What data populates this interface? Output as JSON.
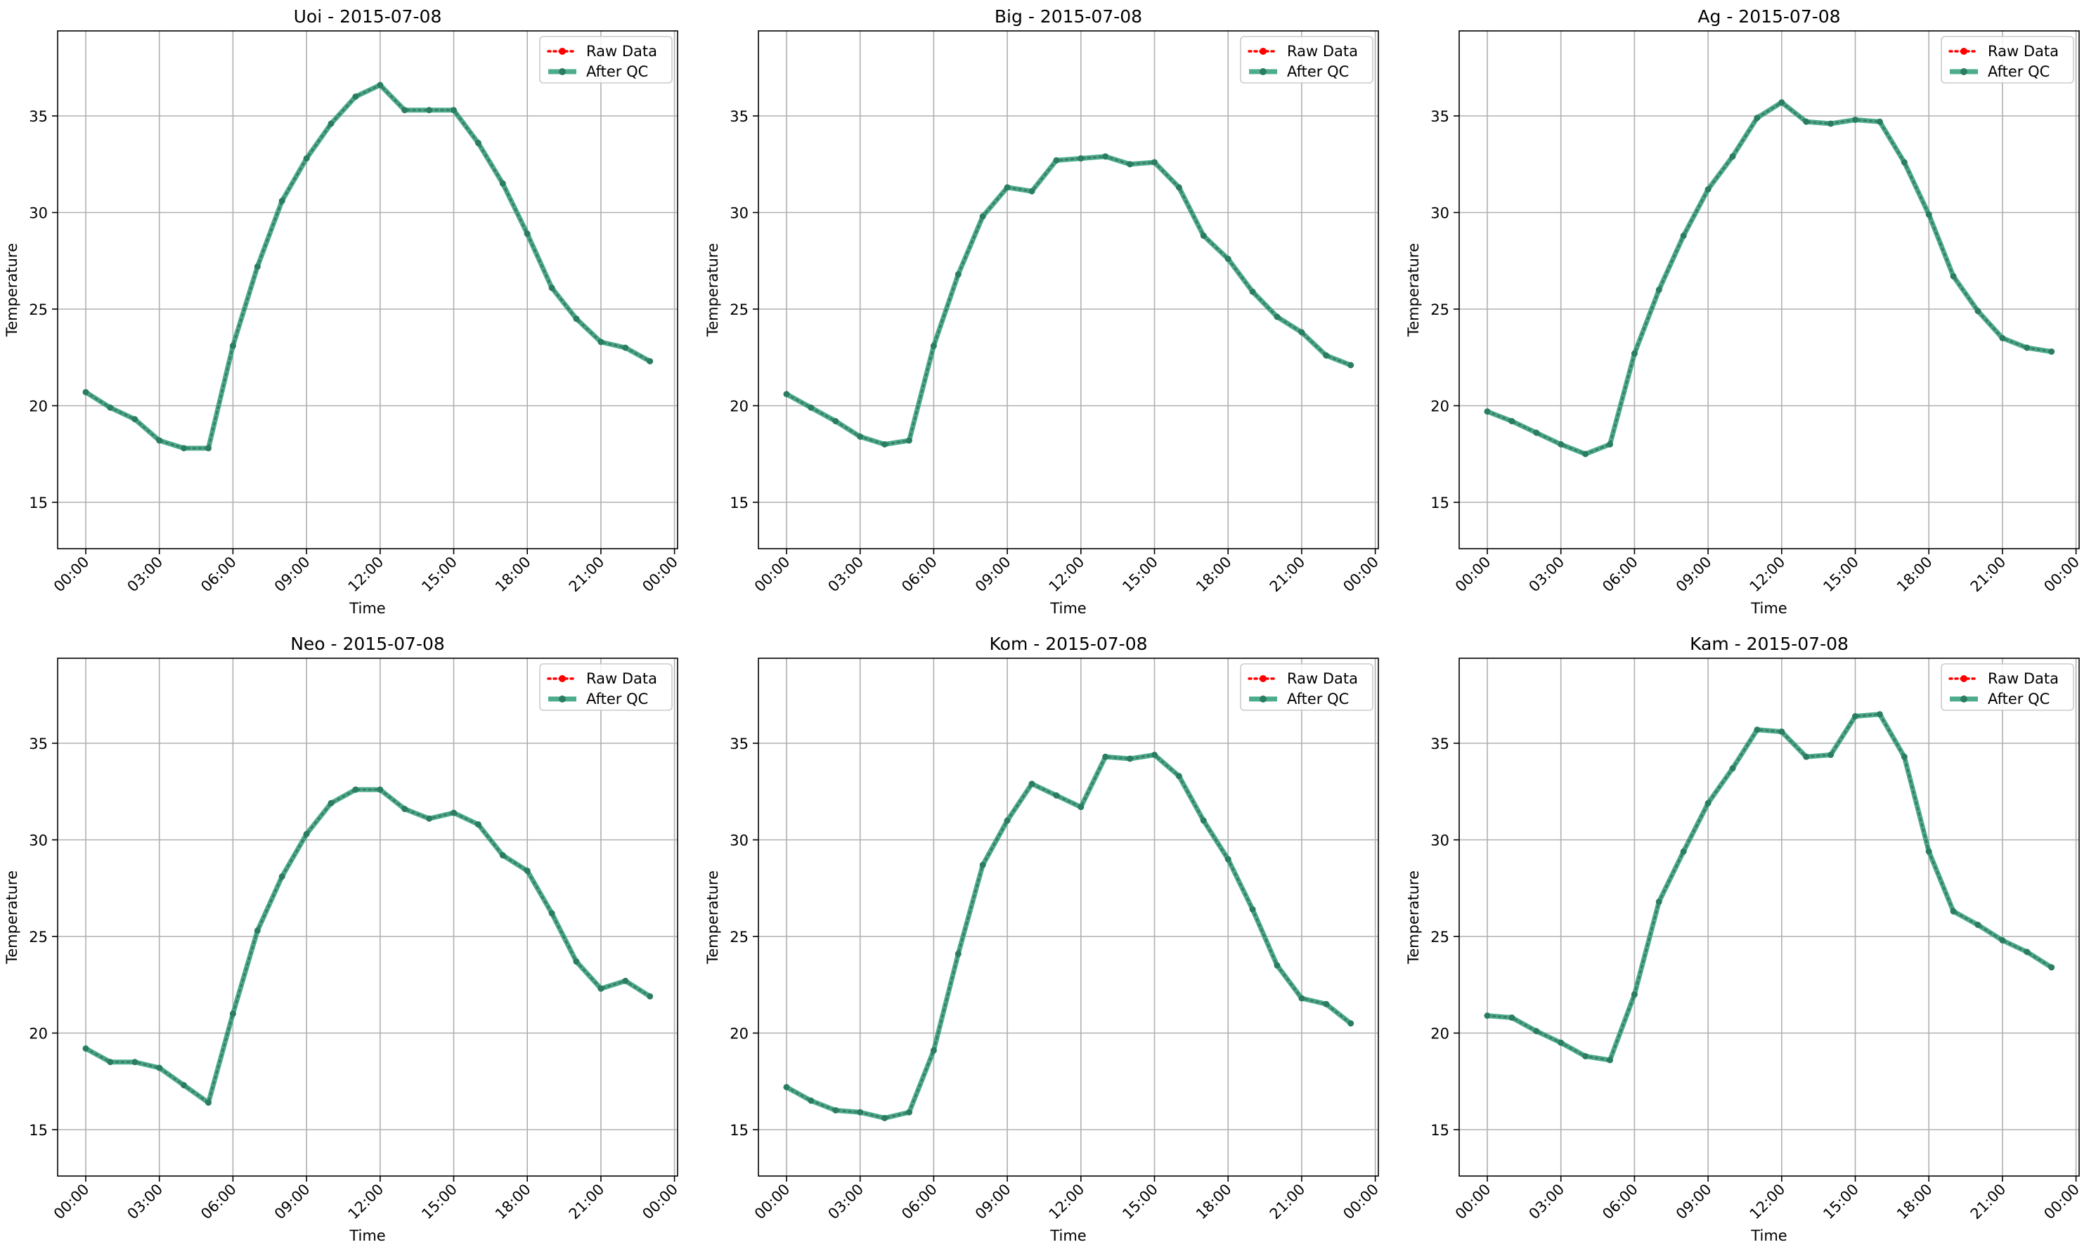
{
  "chart_data": [
    {
      "type": "line",
      "title": "Uoi - 2015-07-08",
      "xlabel": "Time",
      "ylabel": "Temperature",
      "x": [
        "00:00",
        "01:00",
        "02:00",
        "03:00",
        "04:00",
        "05:00",
        "06:00",
        "07:00",
        "08:00",
        "09:00",
        "10:00",
        "11:00",
        "12:00",
        "13:00",
        "14:00",
        "15:00",
        "16:00",
        "17:00",
        "18:00",
        "19:00",
        "20:00",
        "21:00",
        "22:00",
        "23:00"
      ],
      "ylim": [
        12.6,
        39.4
      ],
      "yticks": [
        15,
        20,
        25,
        30,
        35
      ],
      "xtick_labels": [
        "00:00",
        "03:00",
        "06:00",
        "09:00",
        "12:00",
        "15:00",
        "18:00",
        "21:00",
        "00:00"
      ],
      "grid": true,
      "legend_position": "top-right",
      "series": [
        {
          "name": "Raw Data",
          "color": "#ff0000",
          "values": [
            20.7,
            19.9,
            19.3,
            18.2,
            17.8,
            17.8,
            23.1,
            27.2,
            30.6,
            32.8,
            34.6,
            36.0,
            36.6,
            35.3,
            35.3,
            35.3,
            33.6,
            31.5,
            28.9,
            26.1,
            24.5,
            23.3,
            23.0,
            22.3
          ]
        },
        {
          "name": "After QC",
          "color": "#2e9e78",
          "values": [
            20.7,
            19.9,
            19.3,
            18.2,
            17.8,
            17.8,
            23.1,
            27.2,
            30.6,
            32.8,
            34.6,
            36.0,
            36.6,
            35.3,
            35.3,
            35.3,
            33.6,
            31.5,
            28.9,
            26.1,
            24.5,
            23.3,
            23.0,
            22.3
          ]
        }
      ]
    },
    {
      "type": "line",
      "title": "Big - 2015-07-08",
      "xlabel": "Time",
      "ylabel": "Temperature",
      "x": [
        "00:00",
        "01:00",
        "02:00",
        "03:00",
        "04:00",
        "05:00",
        "06:00",
        "07:00",
        "08:00",
        "09:00",
        "10:00",
        "11:00",
        "12:00",
        "13:00",
        "14:00",
        "15:00",
        "16:00",
        "17:00",
        "18:00",
        "19:00",
        "20:00",
        "21:00",
        "22:00",
        "23:00"
      ],
      "ylim": [
        12.6,
        39.4
      ],
      "yticks": [
        15,
        20,
        25,
        30,
        35
      ],
      "xtick_labels": [
        "00:00",
        "03:00",
        "06:00",
        "09:00",
        "12:00",
        "15:00",
        "18:00",
        "21:00",
        "00:00"
      ],
      "grid": true,
      "legend_position": "top-right",
      "series": [
        {
          "name": "Raw Data",
          "color": "#ff0000",
          "values": [
            20.6,
            19.9,
            19.2,
            18.4,
            18.0,
            18.2,
            23.1,
            26.8,
            29.8,
            31.3,
            31.1,
            32.7,
            32.8,
            32.9,
            32.5,
            32.6,
            31.3,
            28.8,
            27.6,
            25.9,
            24.6,
            23.8,
            22.6,
            22.1
          ]
        },
        {
          "name": "After QC",
          "color": "#2e9e78",
          "values": [
            20.6,
            19.9,
            19.2,
            18.4,
            18.0,
            18.2,
            23.1,
            26.8,
            29.8,
            31.3,
            31.1,
            32.7,
            32.8,
            32.9,
            32.5,
            32.6,
            31.3,
            28.8,
            27.6,
            25.9,
            24.6,
            23.8,
            22.6,
            22.1
          ]
        }
      ]
    },
    {
      "type": "line",
      "title": "Ag - 2015-07-08",
      "xlabel": "Time",
      "ylabel": "Temperature",
      "x": [
        "00:00",
        "01:00",
        "02:00",
        "03:00",
        "04:00",
        "05:00",
        "06:00",
        "07:00",
        "08:00",
        "09:00",
        "10:00",
        "11:00",
        "12:00",
        "13:00",
        "14:00",
        "15:00",
        "16:00",
        "17:00",
        "18:00",
        "19:00",
        "20:00",
        "21:00",
        "22:00",
        "23:00"
      ],
      "ylim": [
        12.6,
        39.4
      ],
      "yticks": [
        15,
        20,
        25,
        30,
        35
      ],
      "xtick_labels": [
        "00:00",
        "03:00",
        "06:00",
        "09:00",
        "12:00",
        "15:00",
        "18:00",
        "21:00",
        "00:00"
      ],
      "grid": true,
      "legend_position": "top-right",
      "series": [
        {
          "name": "Raw Data",
          "color": "#ff0000",
          "values": [
            19.7,
            19.2,
            18.6,
            18.0,
            17.5,
            18.0,
            22.7,
            26.0,
            28.8,
            31.2,
            32.9,
            34.9,
            35.7,
            34.7,
            34.6,
            34.8,
            34.7,
            32.6,
            29.9,
            26.7,
            24.9,
            23.5,
            23.0,
            22.8
          ]
        },
        {
          "name": "After QC",
          "color": "#2e9e78",
          "values": [
            19.7,
            19.2,
            18.6,
            18.0,
            17.5,
            18.0,
            22.7,
            26.0,
            28.8,
            31.2,
            32.9,
            34.9,
            35.7,
            34.7,
            34.6,
            34.8,
            34.7,
            32.6,
            29.9,
            26.7,
            24.9,
            23.5,
            23.0,
            22.8
          ]
        }
      ]
    },
    {
      "type": "line",
      "title": "Neo - 2015-07-08",
      "xlabel": "Time",
      "ylabel": "Temperature",
      "x": [
        "00:00",
        "01:00",
        "02:00",
        "03:00",
        "04:00",
        "05:00",
        "06:00",
        "07:00",
        "08:00",
        "09:00",
        "10:00",
        "11:00",
        "12:00",
        "13:00",
        "14:00",
        "15:00",
        "16:00",
        "17:00",
        "18:00",
        "19:00",
        "20:00",
        "21:00",
        "22:00",
        "23:00"
      ],
      "ylim": [
        12.6,
        39.4
      ],
      "yticks": [
        15,
        20,
        25,
        30,
        35
      ],
      "xtick_labels": [
        "00:00",
        "03:00",
        "06:00",
        "09:00",
        "12:00",
        "15:00",
        "18:00",
        "21:00",
        "00:00"
      ],
      "grid": true,
      "legend_position": "top-right",
      "series": [
        {
          "name": "Raw Data",
          "color": "#ff0000",
          "values": [
            19.2,
            18.5,
            18.5,
            18.2,
            17.3,
            16.4,
            21.0,
            25.3,
            28.1,
            30.3,
            31.9,
            32.6,
            32.6,
            31.6,
            31.1,
            31.4,
            30.8,
            29.2,
            28.4,
            26.2,
            23.7,
            22.3,
            22.7,
            21.9
          ]
        },
        {
          "name": "After QC",
          "color": "#2e9e78",
          "values": [
            19.2,
            18.5,
            18.5,
            18.2,
            17.3,
            16.4,
            21.0,
            25.3,
            28.1,
            30.3,
            31.9,
            32.6,
            32.6,
            31.6,
            31.1,
            31.4,
            30.8,
            29.2,
            28.4,
            26.2,
            23.7,
            22.3,
            22.7,
            21.9
          ]
        }
      ]
    },
    {
      "type": "line",
      "title": "Kom - 2015-07-08",
      "xlabel": "Time",
      "ylabel": "Temperature",
      "x": [
        "00:00",
        "01:00",
        "02:00",
        "03:00",
        "04:00",
        "05:00",
        "06:00",
        "07:00",
        "08:00",
        "09:00",
        "10:00",
        "11:00",
        "12:00",
        "13:00",
        "14:00",
        "15:00",
        "16:00",
        "17:00",
        "18:00",
        "19:00",
        "20:00",
        "21:00",
        "22:00",
        "23:00"
      ],
      "ylim": [
        12.6,
        39.4
      ],
      "yticks": [
        15,
        20,
        25,
        30,
        35
      ],
      "xtick_labels": [
        "00:00",
        "03:00",
        "06:00",
        "09:00",
        "12:00",
        "15:00",
        "18:00",
        "21:00",
        "00:00"
      ],
      "grid": true,
      "legend_position": "top-right",
      "series": [
        {
          "name": "Raw Data",
          "color": "#ff0000",
          "values": [
            17.2,
            16.5,
            16.0,
            15.9,
            15.6,
            15.9,
            19.1,
            24.1,
            28.7,
            31.0,
            32.9,
            32.3,
            31.7,
            34.3,
            34.2,
            34.4,
            33.3,
            31.0,
            29.0,
            26.4,
            23.5,
            21.8,
            21.5,
            20.5
          ]
        },
        {
          "name": "After QC",
          "color": "#2e9e78",
          "values": [
            17.2,
            16.5,
            16.0,
            15.9,
            15.6,
            15.9,
            19.1,
            24.1,
            28.7,
            31.0,
            32.9,
            32.3,
            31.7,
            34.3,
            34.2,
            34.4,
            33.3,
            31.0,
            29.0,
            26.4,
            23.5,
            21.8,
            21.5,
            20.5
          ]
        }
      ]
    },
    {
      "type": "line",
      "title": "Kam - 2015-07-08",
      "xlabel": "Time",
      "ylabel": "Temperature",
      "x": [
        "00:00",
        "01:00",
        "02:00",
        "03:00",
        "04:00",
        "05:00",
        "06:00",
        "07:00",
        "08:00",
        "09:00",
        "10:00",
        "11:00",
        "12:00",
        "13:00",
        "14:00",
        "15:00",
        "16:00",
        "17:00",
        "18:00",
        "19:00",
        "20:00",
        "21:00",
        "22:00",
        "23:00"
      ],
      "ylim": [
        12.6,
        39.4
      ],
      "yticks": [
        15,
        20,
        25,
        30,
        35
      ],
      "xtick_labels": [
        "00:00",
        "03:00",
        "06:00",
        "09:00",
        "12:00",
        "15:00",
        "18:00",
        "21:00",
        "00:00"
      ],
      "grid": true,
      "legend_position": "top-right",
      "series": [
        {
          "name": "Raw Data",
          "color": "#ff0000",
          "values": [
            20.9,
            20.8,
            20.1,
            19.5,
            18.8,
            18.6,
            22.0,
            26.8,
            29.4,
            31.9,
            33.7,
            35.7,
            35.6,
            34.3,
            34.4,
            36.4,
            36.5,
            34.3,
            29.4,
            26.3,
            25.6,
            24.8,
            24.2,
            23.4
          ]
        },
        {
          "name": "After QC",
          "color": "#2e9e78",
          "values": [
            20.9,
            20.8,
            20.1,
            19.5,
            18.8,
            18.6,
            22.0,
            26.8,
            29.4,
            31.9,
            33.7,
            35.7,
            35.6,
            34.3,
            34.4,
            36.4,
            36.5,
            34.3,
            29.4,
            26.3,
            25.6,
            24.8,
            24.2,
            23.4
          ]
        }
      ]
    }
  ]
}
